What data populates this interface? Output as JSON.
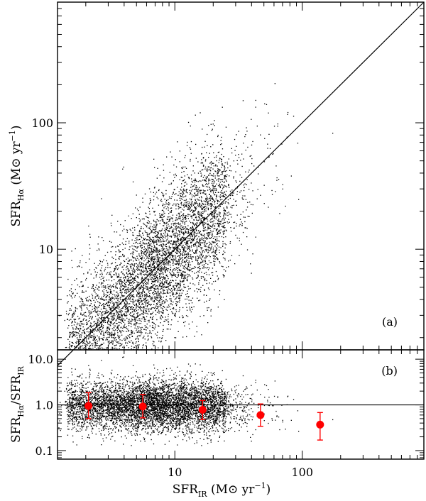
{
  "chart_data": [
    {
      "panel": "(a)",
      "type": "scatter",
      "xscale": "log",
      "yscale": "log",
      "xlim": [
        1.2,
        900
      ],
      "ylim": [
        1.6,
        900
      ],
      "xticks": [
        {
          "value": 10,
          "label": "10"
        },
        {
          "value": 100,
          "label": "100"
        }
      ],
      "yticks": [
        {
          "value": 10,
          "label": "10"
        },
        {
          "value": 100,
          "label": "100"
        }
      ],
      "ylabel": {
        "main": "SFR",
        "sub": "Hα",
        "unit": " (M⊙ yr",
        "exp": "−1",
        "close": ")"
      },
      "reference_line": {
        "label": "1:1",
        "x": [
          1.2,
          900
        ],
        "y": [
          1.2,
          900
        ]
      },
      "scatter_points": 6000,
      "scatter_description": "dense cloud of small black dots following the 1:1 line with ~0.3 dex scatter",
      "panel_label": "(a)"
    },
    {
      "panel": "(b)",
      "type": "scatter",
      "xscale": "log",
      "yscale": "log",
      "xlim": [
        1.2,
        900
      ],
      "ylim": [
        0.065,
        16
      ],
      "xticks": [
        {
          "value": 10,
          "label": "10"
        },
        {
          "value": 100,
          "label": "100"
        }
      ],
      "yticks": [
        {
          "value": 0.1,
          "label": "0.1"
        },
        {
          "value": 1.0,
          "label": "1.0"
        },
        {
          "value": 10.0,
          "label": "10.0"
        }
      ],
      "xlabel": {
        "main": "SFR",
        "sub": "IR",
        "unit": " (M⊙ yr",
        "exp": "−1",
        "close": ")"
      },
      "ylabel": {
        "main": "SFR",
        "sub1": "Hα",
        "mid": "/SFR",
        "sub2": "IR"
      },
      "reference_line": {
        "label": "ratio = 1",
        "y": 1.0
      },
      "binned_means": {
        "color": "#ff0000",
        "x": [
          2.1,
          5.6,
          16.5,
          47,
          138
        ],
        "y": [
          0.95,
          0.92,
          0.78,
          0.6,
          0.37
        ],
        "yerr_low": [
          0.5,
          0.52,
          0.48,
          0.34,
          0.17
        ],
        "yerr_high": [
          1.85,
          1.7,
          1.25,
          1.05,
          0.68
        ]
      },
      "panel_label": "(b)"
    }
  ]
}
